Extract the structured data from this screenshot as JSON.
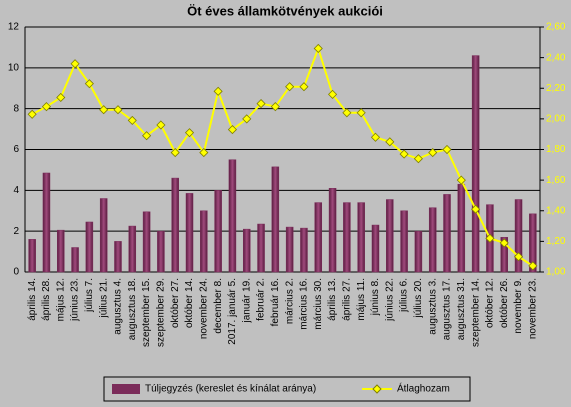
{
  "chart_data": {
    "type": "bar_line",
    "title": "Öt éves államkötvények aukciói",
    "categories": [
      "április 14.",
      "április 28.",
      "május 12.",
      "június 23.",
      "július 7.",
      "július 21.",
      "augusztus 4.",
      "augusztus 18.",
      "szeptember 15.",
      "szeptember 29.",
      "október 27.",
      "október 14.",
      "november 24.",
      "december 8.",
      "2017. január 5.",
      "január 19.",
      "február 2.",
      "február 16.",
      "március 2.",
      "március 16.",
      "március 30.",
      "április 13.",
      "április 27.",
      "május 11.",
      "június 8.",
      "június 22.",
      "július 6.",
      "július 20.",
      "augusztus 3.",
      "augusztus 17.",
      "augusztus 31.",
      "szeptember 14.",
      "október 12.",
      "október 26.",
      "november 9.",
      "november 23."
    ],
    "series": [
      {
        "name": "Túljegyzés (kereslet és kínálat aránya)",
        "color": "#7b2c5a",
        "axis": "y",
        "type": "bar",
        "values": [
          1.6,
          4.85,
          2.05,
          1.2,
          2.45,
          3.6,
          1.5,
          2.25,
          2.95,
          2.0,
          4.6,
          3.85,
          3.0,
          4.0,
          5.5,
          2.1,
          2.35,
          5.15,
          2.2,
          2.15,
          3.4,
          4.1,
          3.4,
          3.4,
          2.3,
          3.55,
          3.0,
          2.0,
          3.15,
          3.8,
          4.3,
          10.6,
          3.3,
          1.7,
          3.55,
          2.85
        ]
      },
      {
        "name": "Átlaghozam",
        "color": "#ffff00",
        "axis": "y2",
        "type": "line",
        "values": [
          2.03,
          2.08,
          2.14,
          2.36,
          2.23,
          2.06,
          2.06,
          1.99,
          1.89,
          1.96,
          1.78,
          1.91,
          1.78,
          2.18,
          1.93,
          2.0,
          2.1,
          2.08,
          2.21,
          2.21,
          2.46,
          2.16,
          2.04,
          2.04,
          1.88,
          1.85,
          1.77,
          1.74,
          1.78,
          1.8,
          1.6,
          1.41,
          1.22,
          1.19,
          1.1,
          1.04
        ]
      }
    ],
    "ylim": [
      0,
      12
    ],
    "yticks": [
      0,
      2,
      4,
      6,
      8,
      10,
      12
    ],
    "y2lim": [
      1,
      2.6
    ],
    "y2ticks": [
      {
        "value": 1,
        "label": "1,00"
      },
      {
        "value": 1.2,
        "label": "1,20"
      },
      {
        "value": 1.4,
        "label": "1,40"
      },
      {
        "value": 1.6,
        "label": "1,60"
      },
      {
        "value": 1.8,
        "label": "1,80"
      },
      {
        "value": 2,
        "label": "2,00"
      },
      {
        "value": 2.2,
        "label": "2,20"
      },
      {
        "value": 2.4,
        "label": "2,40"
      },
      {
        "value": 2.6,
        "label": "2,60"
      }
    ],
    "grid": true,
    "legend": "bottom"
  }
}
